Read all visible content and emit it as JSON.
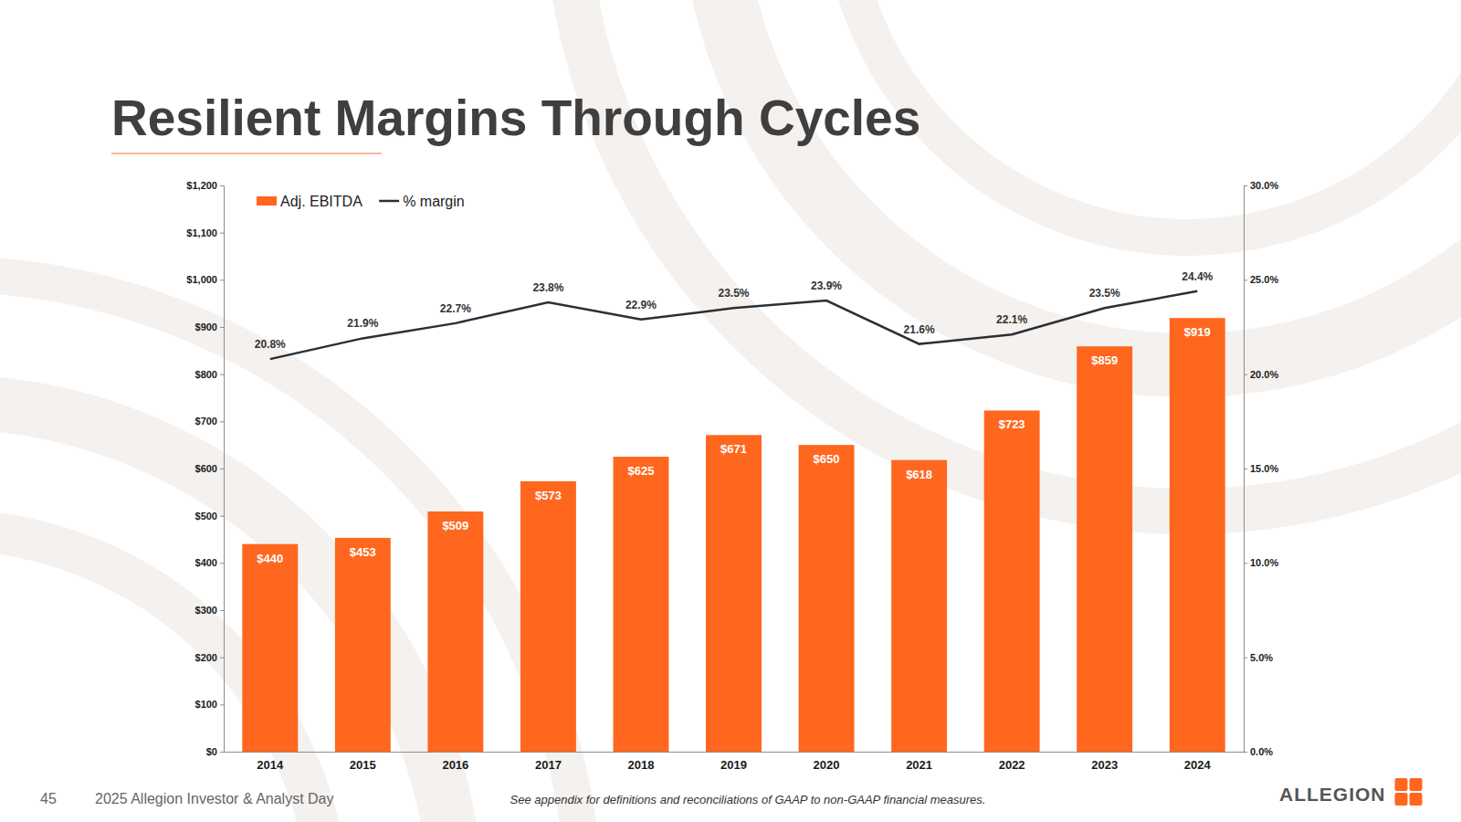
{
  "chart_data": {
    "type": "bar",
    "title": "Resilient Margins Through Cycles",
    "categories": [
      "2014",
      "2015",
      "2016",
      "2017",
      "2018",
      "2019",
      "2020",
      "2021",
      "2022",
      "2023",
      "2024"
    ],
    "series": [
      {
        "name": "Adj. EBITDA",
        "type": "bar",
        "color": "#ff671f",
        "values": [
          440,
          453,
          509,
          573,
          625,
          671,
          650,
          618,
          723,
          859,
          919
        ],
        "value_labels": [
          "$440",
          "$453",
          "$509",
          "$573",
          "$625",
          "$671",
          "$650",
          "$618",
          "$723",
          "$859",
          "$919"
        ]
      },
      {
        "name": "% margin",
        "type": "line",
        "axis": "y2",
        "color": "#2b2f36",
        "values": [
          20.8,
          21.9,
          22.7,
          23.8,
          22.9,
          23.5,
          23.9,
          21.6,
          22.1,
          23.5,
          24.4
        ],
        "value_labels": [
          "20.8%",
          "21.9%",
          "22.7%",
          "23.8%",
          "22.9%",
          "23.5%",
          "23.9%",
          "21.6%",
          "22.1%",
          "23.5%",
          "24.4%"
        ]
      }
    ],
    "ylim": [
      0,
      1200
    ],
    "yticks": [
      {
        "value": 0,
        "label": "$0"
      },
      {
        "value": 100,
        "label": "$100"
      },
      {
        "value": 200,
        "label": "$200"
      },
      {
        "value": 300,
        "label": "$300"
      },
      {
        "value": 400,
        "label": "$400"
      },
      {
        "value": 500,
        "label": "$500"
      },
      {
        "value": 600,
        "label": "$600"
      },
      {
        "value": 700,
        "label": "$700"
      },
      {
        "value": 800,
        "label": "$800"
      },
      {
        "value": 900,
        "label": "$900"
      },
      {
        "value": 1000,
        "label": "$1,000"
      },
      {
        "value": 1100,
        "label": "$1,100"
      },
      {
        "value": 1200,
        "label": "$1,200"
      }
    ],
    "y2lim": [
      0,
      30
    ],
    "y2ticks": [
      {
        "value": 0,
        "label": "0.0%"
      },
      {
        "value": 5,
        "label": "5.0%"
      },
      {
        "value": 10,
        "label": "10.0%"
      },
      {
        "value": 15,
        "label": "15.0%"
      },
      {
        "value": 20,
        "label": "20.0%"
      },
      {
        "value": 25,
        "label": "25.0%"
      },
      {
        "value": 30,
        "label": "30.0%"
      }
    ],
    "grid": false,
    "legend": "top-left",
    "data_labels": true
  },
  "page_number": "45",
  "footer": "2025 Allegion Investor & Analyst Day",
  "note": "See appendix for definitions and reconciliations of GAAP to non-GAAP financial measures.",
  "logo": "ALLEGION"
}
